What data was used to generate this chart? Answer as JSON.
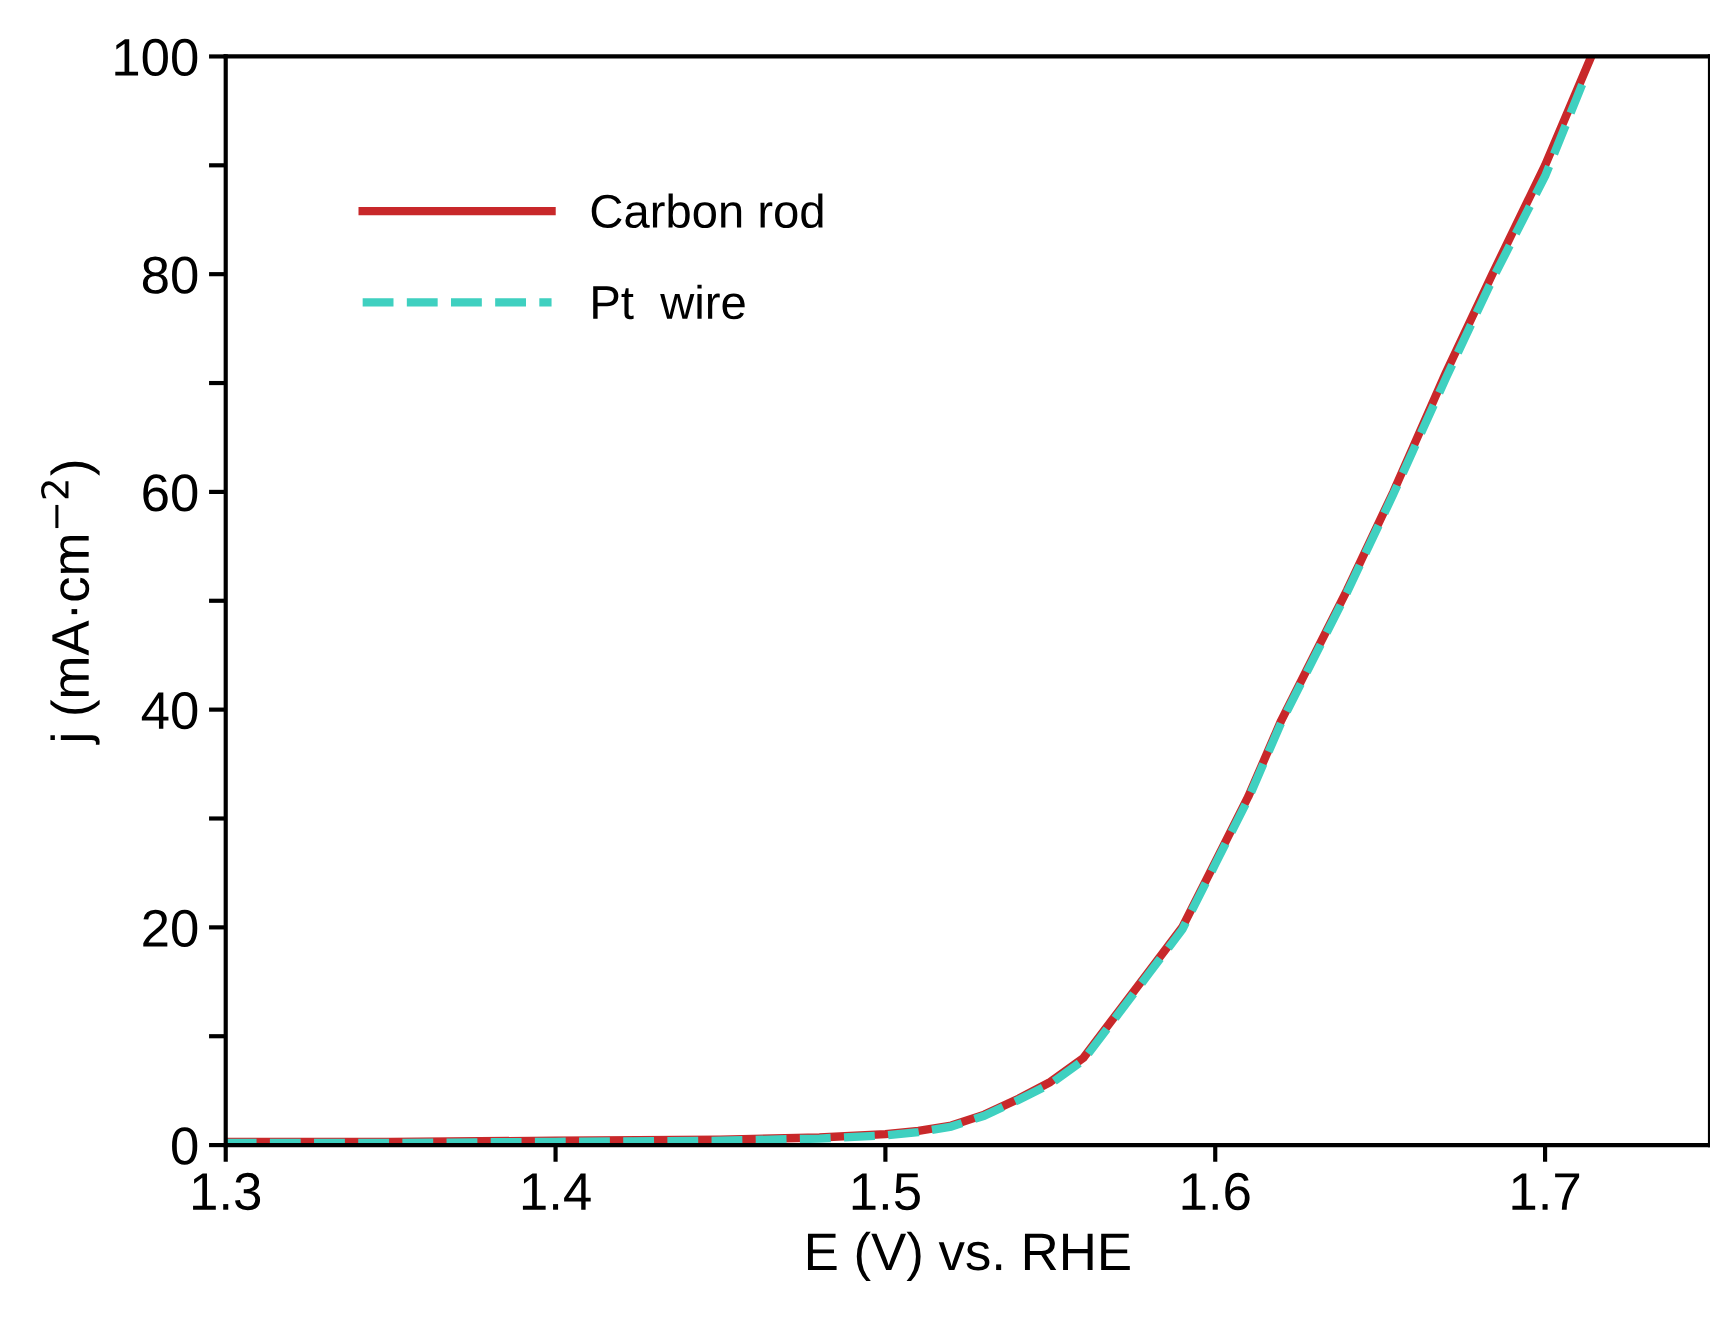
{
  "chart_data": {
    "type": "line",
    "xlabel": "E (V) vs. RHE",
    "ylabel": "j (mA·cm$^{−2}$)",
    "xlim": [
      1.3,
      1.75
    ],
    "xticks": [
      1.3,
      1.4,
      1.5,
      1.6,
      1.7
    ],
    "ylim": [
      0,
      100
    ],
    "yticks": [
      0,
      {
        "value": 10,
        "label": null
      },
      20,
      {
        "value": 30,
        "label": null
      },
      40,
      {
        "value": 50,
        "label": null
      },
      60,
      {
        "value": 70,
        "label": null
      },
      80,
      {
        "value": 90,
        "label": null
      },
      100
    ],
    "legend": "top left",
    "grid": false,
    "series": [
      {
        "name": "Carbon rod",
        "color": "#c8282a",
        "line_style": "solid",
        "x": [
          1.3,
          1.35,
          1.4,
          1.45,
          1.48,
          1.5,
          1.51,
          1.52,
          1.53,
          1.54,
          1.55,
          1.56,
          1.57,
          1.58,
          1.59,
          1.6,
          1.61,
          1.62,
          1.63,
          1.64,
          1.654,
          1.67,
          1.684,
          1.7,
          1.714
        ],
        "values": [
          0.3,
          0.3,
          0.4,
          0.5,
          0.7,
          1.0,
          1.3,
          1.8,
          2.8,
          4.2,
          5.8,
          8,
          12,
          16,
          20,
          26,
          32,
          39,
          45,
          51,
          60,
          71,
          80,
          90,
          100
        ]
      },
      {
        "name": "Pt  wire",
        "color": "#3fd0c0",
        "line_style": "dashed",
        "x": [
          1.3,
          1.35,
          1.4,
          1.45,
          1.48,
          1.5,
          1.51,
          1.52,
          1.53,
          1.54,
          1.55,
          1.56,
          1.57,
          1.58,
          1.59,
          1.6,
          1.61,
          1.62,
          1.63,
          1.64,
          1.654,
          1.67,
          1.684,
          1.7,
          1.712
        ],
        "values": [
          0.2,
          0.2,
          0.3,
          0.4,
          0.6,
          0.9,
          1.2,
          1.7,
          2.7,
          4.1,
          5.6,
          7.8,
          11.8,
          15.8,
          19.8,
          25.8,
          31.8,
          38.8,
          44.8,
          50.8,
          59.8,
          70.5,
          79.5,
          89,
          98
        ]
      }
    ]
  }
}
